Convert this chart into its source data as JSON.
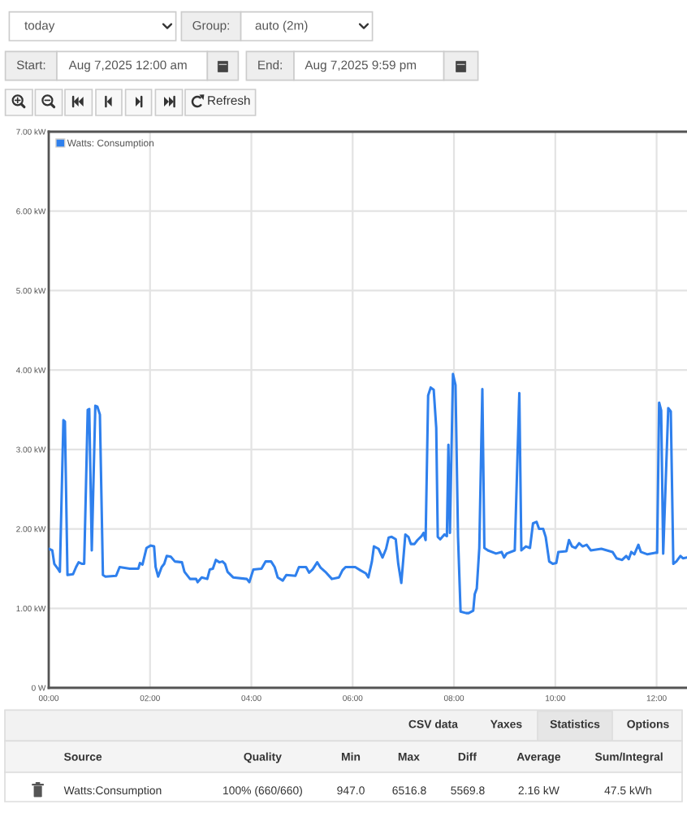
{
  "chart_data": {
    "type": "line",
    "x": [
      0.0,
      0.07,
      0.11,
      0.19,
      0.22,
      0.29,
      0.32,
      0.37,
      0.48,
      0.54,
      0.59,
      0.66,
      0.7,
      0.77,
      0.8,
      0.85,
      0.92,
      0.96,
      1.01,
      1.07,
      1.12,
      1.33,
      1.4,
      1.6,
      1.77,
      1.8,
      1.85,
      1.93,
      2.01,
      2.08,
      2.11,
      2.16,
      2.23,
      2.28,
      2.33,
      2.41,
      2.49,
      2.63,
      2.68,
      2.79,
      2.91,
      2.94,
      3.02,
      3.13,
      3.18,
      3.24,
      3.3,
      3.37,
      3.43,
      3.48,
      3.53,
      3.64,
      3.91,
      3.96,
      4.04,
      4.2,
      4.28,
      4.39,
      4.46,
      4.52,
      4.62,
      4.69,
      4.87,
      4.94,
      5.08,
      5.14,
      5.21,
      5.3,
      5.37,
      5.46,
      5.59,
      5.73,
      5.8,
      5.86,
      6.05,
      6.15,
      6.26,
      6.31,
      6.38,
      6.42,
      6.51,
      6.59,
      6.66,
      6.71,
      6.77,
      6.85,
      6.9,
      6.96,
      7.0,
      7.04,
      7.1,
      7.15,
      7.22,
      7.28,
      7.36,
      7.4,
      7.44,
      7.49,
      7.54,
      7.6,
      7.65,
      7.68,
      7.73,
      7.81,
      7.86,
      7.89,
      7.92,
      7.98,
      8.03,
      8.08,
      8.13,
      8.24,
      8.29,
      8.38,
      8.41,
      8.45,
      8.5,
      8.56,
      8.6,
      8.67,
      8.83,
      8.94,
      8.99,
      9.04,
      9.2,
      9.29,
      9.33,
      9.42,
      9.5,
      9.56,
      9.63,
      9.68,
      9.76,
      9.81,
      9.88,
      9.95,
      10.02,
      10.06,
      10.22,
      10.27,
      10.33,
      10.4,
      10.47,
      10.54,
      10.62,
      10.7,
      10.91,
      11.02,
      11.13,
      11.21,
      11.32,
      11.4,
      11.45,
      11.5,
      11.56,
      11.64,
      11.69,
      11.82,
      11.97,
      12.01,
      12.05,
      12.09,
      12.13,
      12.23,
      12.28,
      12.33,
      12.39,
      12.47,
      12.52,
      12.6
    ],
    "series": [
      {
        "name": "Watts: Consumption",
        "color": "#2f80ed",
        "values": [
          1.75,
          1.73,
          1.56,
          1.49,
          1.46,
          3.37,
          3.35,
          1.42,
          1.43,
          1.52,
          1.58,
          1.56,
          1.56,
          3.5,
          3.51,
          1.73,
          3.55,
          3.54,
          3.44,
          1.42,
          1.4,
          1.41,
          1.52,
          1.5,
          1.5,
          1.57,
          1.55,
          1.76,
          1.79,
          1.78,
          1.52,
          1.4,
          1.52,
          1.56,
          1.66,
          1.65,
          1.59,
          1.58,
          1.46,
          1.37,
          1.37,
          1.33,
          1.39,
          1.37,
          1.49,
          1.5,
          1.61,
          1.58,
          1.59,
          1.56,
          1.46,
          1.39,
          1.37,
          1.33,
          1.49,
          1.5,
          1.59,
          1.59,
          1.52,
          1.39,
          1.35,
          1.42,
          1.41,
          1.52,
          1.52,
          1.45,
          1.49,
          1.58,
          1.51,
          1.46,
          1.37,
          1.39,
          1.48,
          1.52,
          1.52,
          1.48,
          1.44,
          1.39,
          1.59,
          1.78,
          1.75,
          1.64,
          1.75,
          1.89,
          1.9,
          1.87,
          1.56,
          1.32,
          1.62,
          1.93,
          1.9,
          1.81,
          1.81,
          1.86,
          1.91,
          1.95,
          1.86,
          3.68,
          3.78,
          3.75,
          3.27,
          1.9,
          1.87,
          1.93,
          1.91,
          3.06,
          1.95,
          3.95,
          3.81,
          1.9,
          0.96,
          0.94,
          0.94,
          0.97,
          1.18,
          1.25,
          1.76,
          3.76,
          1.76,
          1.73,
          1.69,
          1.71,
          1.64,
          1.69,
          1.73,
          3.71,
          1.73,
          1.78,
          1.76,
          2.07,
          2.09,
          2.0,
          2.0,
          1.9,
          1.59,
          1.56,
          1.57,
          1.71,
          1.72,
          1.86,
          1.78,
          1.76,
          1.82,
          1.78,
          1.8,
          1.73,
          1.75,
          1.73,
          1.71,
          1.63,
          1.61,
          1.66,
          1.62,
          1.71,
          1.68,
          1.8,
          1.71,
          1.68,
          1.7,
          1.7,
          3.59,
          3.49,
          1.69,
          3.52,
          3.48,
          1.56,
          1.59,
          1.66,
          1.63,
          1.64
        ]
      }
    ],
    "xlim": [
      0,
      12.6
    ],
    "xticks": [
      {
        "value": 0,
        "label": "00:00"
      },
      {
        "value": 2,
        "label": "02:00"
      },
      {
        "value": 4,
        "label": "04:00"
      },
      {
        "value": 6,
        "label": "06:00"
      },
      {
        "value": 8,
        "label": "08:00"
      },
      {
        "value": 10,
        "label": "10:00"
      },
      {
        "value": 12,
        "label": "12:00"
      }
    ],
    "ylim": [
      0,
      7
    ],
    "yticks": [
      {
        "value": 0,
        "label": "0 W"
      },
      {
        "value": 1,
        "label": "1.00 kW"
      },
      {
        "value": 2,
        "label": "2.00 kW"
      },
      {
        "value": 3,
        "label": "3.00 kW"
      },
      {
        "value": 4,
        "label": "4.00 kW"
      },
      {
        "value": 5,
        "label": "5.00 kW"
      },
      {
        "value": 6,
        "label": "6.00 kW"
      },
      {
        "value": 7,
        "label": "7.00 kW"
      }
    ],
    "grid": true,
    "legend": "top left",
    "annotations": [
      "today",
      "Group:",
      "auto (2m)",
      "Start:",
      "Aug 7,2025 12:00 am",
      "End:",
      "Aug 7,2025 9:59 pm",
      "Refresh",
      "CSV data",
      "Yaxes",
      "Statistics",
      "Options",
      "Source",
      "Quality",
      "Min",
      "Max",
      "Diff",
      "Average",
      "Sum/Integral",
      "Watts:Consumption",
      "100% (660/660)",
      "947.0",
      "6516.8",
      "5569.8",
      "2.16 kW",
      "47.5 kWh"
    ]
  }
}
